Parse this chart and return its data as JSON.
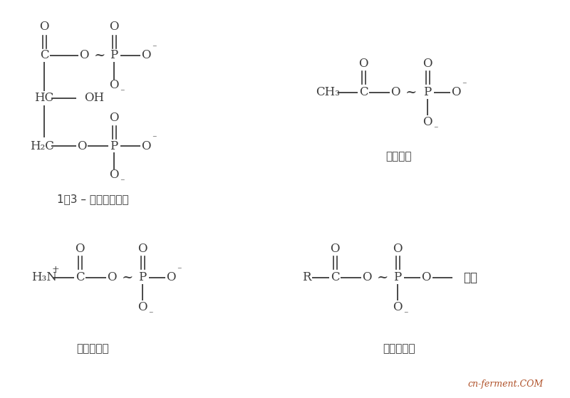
{
  "bg_color": "#ffffff",
  "text_color": "#3a3a3a",
  "line_color": "#3a3a3a",
  "figsize": [
    8.0,
    5.59
  ],
  "dpi": 100,
  "label_tl": "1，3 – 二磷酸甘油酸",
  "label_tr": "乙酰磷酸",
  "label_bl": "氨甲酰磷酸",
  "label_br": "酰基腺苷酸",
  "watermark_text": "cn-ferment.COM",
  "watermark_color": "#b0522a"
}
